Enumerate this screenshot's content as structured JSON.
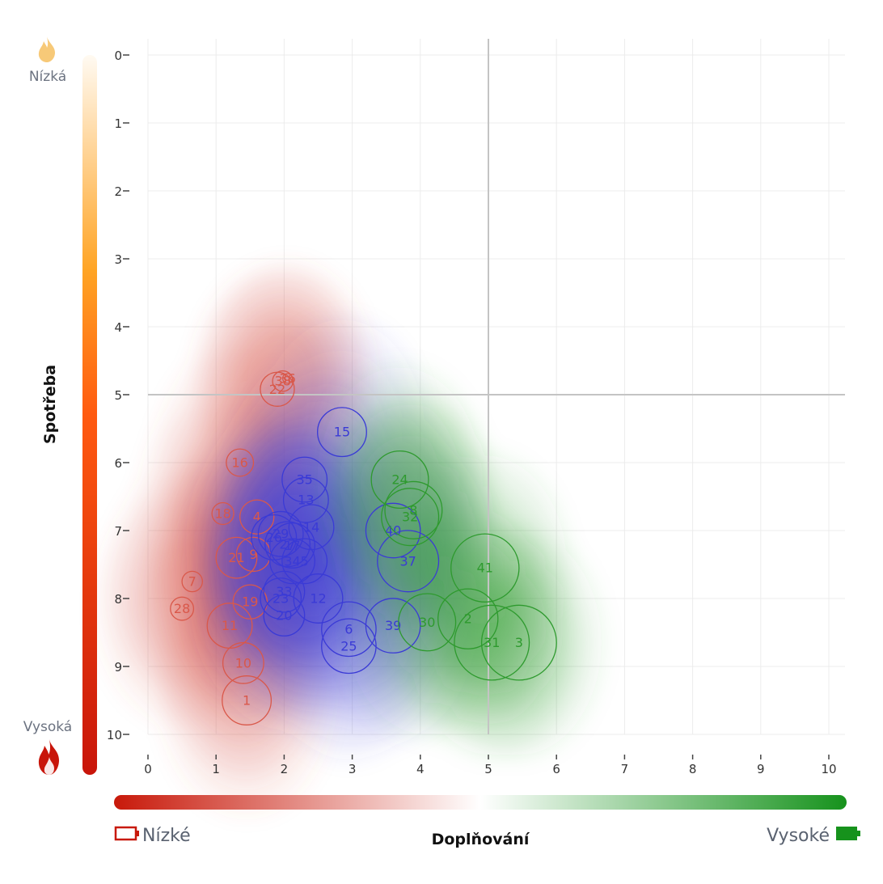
{
  "chart_data": {
    "type": "scatter",
    "subtype": "bubble-with-density-contours",
    "title": "",
    "xlabel": "Doplňování",
    "ylabel": "Spotřeba",
    "xlim": [
      0,
      10
    ],
    "ylim": [
      10,
      0
    ],
    "y_axis_inverted": true,
    "grid": true,
    "x_ticks": [
      "0",
      "1",
      "2",
      "3",
      "4",
      "5",
      "6",
      "7",
      "8",
      "9",
      "10"
    ],
    "y_ticks": [
      "0",
      "1",
      "2",
      "3",
      "4",
      "5",
      "6",
      "7",
      "8",
      "9",
      "10"
    ],
    "reference_lines": {
      "x": 5,
      "y": 5
    },
    "x_scale": {
      "low_label": "Nízké",
      "high_label": "Vysoké",
      "low_icon": "battery-empty-icon",
      "high_icon": "battery-full-icon",
      "low_color": "#c8190a",
      "mid_color": "#ffffff",
      "high_color": "#16921c"
    },
    "y_scale": {
      "low_label": "Nízká",
      "high_label": "Vysoká",
      "low_icon": "flame-light-icon",
      "high_icon": "flame-dark-icon",
      "low_color": "#fff8ee",
      "mid_color": "#ffa424",
      "high_color": "#c8150a"
    },
    "series": [
      {
        "name": "red",
        "color": "#d9584a",
        "points": [
          {
            "label": "1",
            "x": 1.45,
            "y": 9.5,
            "size": 0.36
          },
          {
            "label": "10",
            "x": 1.4,
            "y": 8.95,
            "size": 0.3
          },
          {
            "label": "11",
            "x": 1.2,
            "y": 8.4,
            "size": 0.33
          },
          {
            "label": "28",
            "x": 0.5,
            "y": 8.15,
            "size": 0.17
          },
          {
            "label": "7",
            "x": 0.65,
            "y": 7.75,
            "size": 0.15
          },
          {
            "label": "19",
            "x": 1.5,
            "y": 8.05,
            "size": 0.25
          },
          {
            "label": "21",
            "x": 1.3,
            "y": 7.4,
            "size": 0.3
          },
          {
            "label": "9",
            "x": 1.55,
            "y": 7.35,
            "size": 0.25
          },
          {
            "label": "18",
            "x": 1.1,
            "y": 6.75,
            "size": 0.16
          },
          {
            "label": "4",
            "x": 1.6,
            "y": 6.8,
            "size": 0.25
          },
          {
            "label": "16",
            "x": 1.35,
            "y": 6.0,
            "size": 0.2
          },
          {
            "label": "22",
            "x": 1.9,
            "y": 4.92,
            "size": 0.25
          },
          {
            "label": "38",
            "x": 1.98,
            "y": 4.8,
            "size": 0.15
          },
          {
            "label": "36",
            "x": 2.05,
            "y": 4.76,
            "size": 0.06
          }
        ]
      },
      {
        "name": "blue",
        "color": "#3a3ad6",
        "points": [
          {
            "label": "15",
            "x": 2.85,
            "y": 5.55,
            "size": 0.36
          },
          {
            "label": "35",
            "x": 2.3,
            "y": 6.25,
            "size": 0.33
          },
          {
            "label": "13",
            "x": 2.32,
            "y": 6.55,
            "size": 0.33
          },
          {
            "label": "14",
            "x": 2.4,
            "y": 6.95,
            "size": 0.33
          },
          {
            "label": "29",
            "x": 1.95,
            "y": 7.05,
            "size": 0.33
          },
          {
            "label": "26",
            "x": 1.85,
            "y": 7.1,
            "size": 0.33
          },
          {
            "label": "27",
            "x": 2.05,
            "y": 7.2,
            "size": 0.33
          },
          {
            "label": "17",
            "x": 2.12,
            "y": 7.22,
            "size": 0.33
          },
          {
            "label": "34",
            "x": 2.12,
            "y": 7.45,
            "size": 0.33
          },
          {
            "label": "5",
            "x": 2.3,
            "y": 7.45,
            "size": 0.33
          },
          {
            "label": "33",
            "x": 2.0,
            "y": 7.9,
            "size": 0.3
          },
          {
            "label": "23",
            "x": 1.95,
            "y": 8.0,
            "size": 0.3
          },
          {
            "label": "20",
            "x": 2.0,
            "y": 8.25,
            "size": 0.3
          },
          {
            "label": "12",
            "x": 2.5,
            "y": 8.0,
            "size": 0.36
          },
          {
            "label": "6",
            "x": 2.95,
            "y": 8.45,
            "size": 0.4
          },
          {
            "label": "25",
            "x": 2.95,
            "y": 8.7,
            "size": 0.4
          },
          {
            "label": "39",
            "x": 3.6,
            "y": 8.4,
            "size": 0.4
          },
          {
            "label": "40",
            "x": 3.6,
            "y": 7.0,
            "size": 0.4
          },
          {
            "label": "37",
            "x": 3.82,
            "y": 7.45,
            "size": 0.45
          }
        ]
      },
      {
        "name": "green",
        "color": "#2e9a2e",
        "points": [
          {
            "label": "24",
            "x": 3.7,
            "y": 6.25,
            "size": 0.42
          },
          {
            "label": "8",
            "x": 3.9,
            "y": 6.7,
            "size": 0.42
          },
          {
            "label": "32",
            "x": 3.85,
            "y": 6.8,
            "size": 0.42
          },
          {
            "label": "41",
            "x": 4.95,
            "y": 7.55,
            "size": 0.5
          },
          {
            "label": "30",
            "x": 4.1,
            "y": 8.35,
            "size": 0.42
          },
          {
            "label": "2",
            "x": 4.7,
            "y": 8.3,
            "size": 0.44
          },
          {
            "label": "31",
            "x": 5.05,
            "y": 8.65,
            "size": 0.55
          },
          {
            "label": "3",
            "x": 5.45,
            "y": 8.65,
            "size": 0.55
          }
        ]
      }
    ]
  }
}
